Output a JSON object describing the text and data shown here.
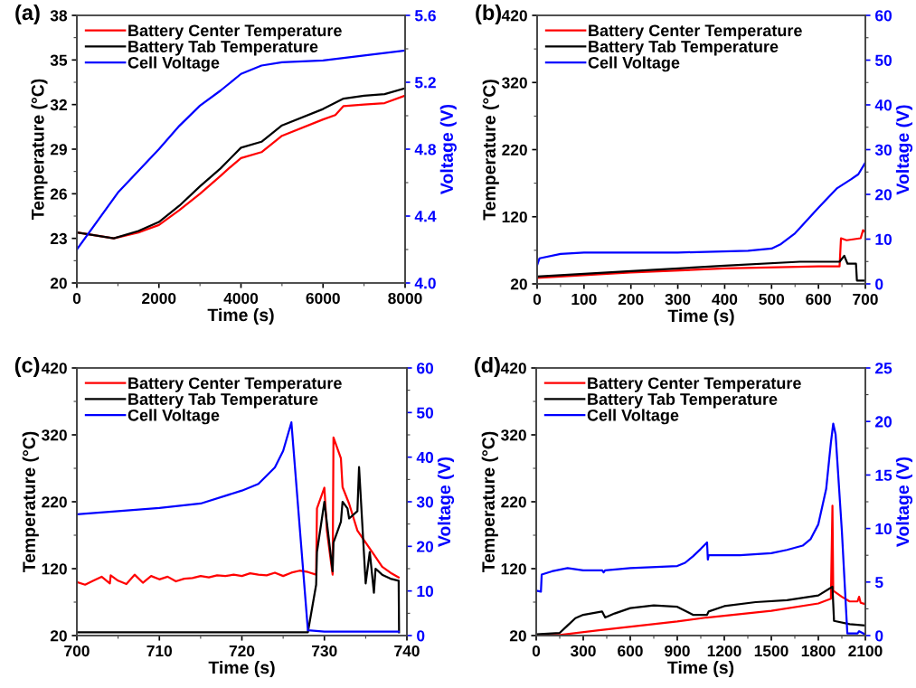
{
  "chart_data": [
    {
      "type": "line",
      "title": "(a)",
      "xlabel": "Time (s)",
      "ylabel": "Temperature (°C)",
      "y2label": "Voltage (V)",
      "xlim": [
        0,
        8000
      ],
      "xticks": [
        0,
        2000,
        4000,
        6000,
        8000
      ],
      "ylim": [
        20,
        38
      ],
      "yticks": [
        20,
        23,
        26,
        29,
        32,
        35,
        38
      ],
      "y2lim": [
        4.0,
        5.6
      ],
      "y2ticks": [
        {
          "value": 4,
          "label": "4.0"
        },
        4.4,
        4.8,
        5.2,
        5.6
      ],
      "legend": "top left",
      "line_style": "solid",
      "grid": false,
      "series": [
        {
          "name": "Battery Center Temperature",
          "color": "#ff0000",
          "x": [
            0,
            900,
            1500,
            2000,
            2500,
            3000,
            3500,
            3700,
            4000,
            4500,
            5000,
            6000,
            6300,
            6500,
            7000,
            7500,
            8000
          ],
          "values": [
            23.4,
            23.0,
            23.4,
            23.9,
            24.9,
            26.0,
            27.2,
            27.7,
            28.4,
            28.8,
            29.9,
            31.0,
            31.3,
            31.9,
            32.0,
            32.1,
            32.6
          ]
        },
        {
          "name": "Battery Tab Temperature",
          "color": "#000000",
          "x": [
            0,
            900,
            1500,
            2000,
            2500,
            3000,
            3500,
            4000,
            4500,
            5000,
            6000,
            6500,
            7000,
            7500,
            8000
          ],
          "values": [
            23.4,
            23.0,
            23.5,
            24.1,
            25.2,
            26.5,
            27.7,
            29.1,
            29.5,
            30.6,
            31.7,
            32.4,
            32.6,
            32.7,
            33.1
          ]
        },
        {
          "name": "Cell Voltage",
          "color": "#0000ff",
          "axis": "y2",
          "x": [
            0,
            1000,
            2000,
            2500,
            3000,
            3500,
            4000,
            4500,
            5000,
            6000,
            7000,
            8000
          ],
          "values": [
            4.2,
            4.54,
            4.8,
            4.94,
            5.06,
            5.15,
            5.25,
            5.3,
            5.32,
            5.33,
            5.36,
            5.39
          ]
        }
      ]
    },
    {
      "type": "line",
      "title": "(b)",
      "xlabel": "Time (s)",
      "ylabel": "Temperature (°C)",
      "y2label": "Voltage (V)",
      "xlim": [
        0,
        700
      ],
      "xticks": [
        0,
        100,
        200,
        300,
        400,
        500,
        600,
        700
      ],
      "ylim": [
        20,
        420
      ],
      "yticks": [
        20,
        120,
        220,
        320,
        420
      ],
      "y2lim": [
        0,
        60
      ],
      "y2ticks": [
        0,
        10,
        20,
        30,
        40,
        50,
        60
      ],
      "legend": "top left",
      "line_style": "solid",
      "grid": false,
      "series": [
        {
          "name": "Battery Center Temperature",
          "color": "#ff0000",
          "x": [
            0,
            200,
            400,
            600,
            645,
            648,
            660,
            690,
            695,
            700
          ],
          "values": [
            29,
            37,
            43,
            46,
            46,
            88,
            85,
            88,
            100,
            97
          ]
        },
        {
          "name": "Battery Tab Temperature",
          "color": "#000000",
          "x": [
            0,
            200,
            400,
            560,
            645,
            655,
            662,
            680,
            682,
            700
          ],
          "values": [
            31,
            39,
            47,
            53,
            53,
            62,
            50,
            50,
            25,
            25
          ]
        },
        {
          "name": "Cell Voltage",
          "color": "#0000ff",
          "axis": "y2",
          "x": [
            0,
            5,
            50,
            100,
            300,
            450,
            500,
            520,
            550,
            600,
            640,
            670,
            685,
            700
          ],
          "values": [
            4.2,
            5.7,
            6.7,
            7.0,
            7.0,
            7.4,
            7.9,
            8.9,
            11.3,
            17.0,
            21.4,
            23.4,
            24.5,
            27.1
          ]
        }
      ]
    },
    {
      "type": "line",
      "title": "(c)",
      "xlabel": "Time (s)",
      "ylabel": "Temperature (°C)",
      "y2label": "Voltage (V)",
      "xlim": [
        700,
        740
      ],
      "xticks": [
        700,
        710,
        720,
        730,
        740
      ],
      "ylim": [
        20,
        420
      ],
      "yticks": [
        20,
        120,
        220,
        320,
        420
      ],
      "y2lim": [
        0,
        60
      ],
      "y2ticks": [
        0,
        10,
        20,
        30,
        40,
        50,
        60
      ],
      "legend": "top left",
      "line_style": "solid",
      "grid": false,
      "series": [
        {
          "name": "Battery Center Temperature",
          "color": "#ff0000",
          "x": [
            700,
            701,
            702,
            703,
            704,
            704.1,
            705,
            706,
            707,
            708,
            709,
            710,
            711,
            712,
            713,
            714,
            715,
            716,
            717,
            718,
            719,
            720,
            721,
            722,
            723,
            724,
            725,
            726,
            727,
            728,
            729,
            729.1,
            730,
            730.3,
            731,
            731.1,
            732,
            732.2,
            733,
            734,
            735,
            736,
            737,
            738,
            739
          ],
          "values": [
            100,
            96,
            102,
            108,
            98,
            110,
            102,
            97,
            111,
            99,
            109,
            104,
            108,
            101,
            105,
            106,
            109,
            107,
            110,
            109,
            111,
            109,
            113,
            111,
            110,
            114,
            109,
            114,
            117,
            115,
            111,
            210,
            241,
            177,
            111,
            316,
            285,
            242,
            217,
            177,
            159,
            141,
            123,
            114,
            107
          ]
        },
        {
          "name": "Battery Tab Temperature",
          "color": "#000000",
          "x": [
            700,
            728,
            729,
            729.1,
            730,
            731,
            731.1,
            732,
            732.2,
            732.8,
            733,
            734,
            734.2,
            735,
            735.5,
            736,
            736.2,
            737,
            738,
            739,
            739.05
          ],
          "values": [
            25,
            25,
            96,
            145,
            220,
            116,
            159,
            190,
            220,
            210,
            195,
            206,
            272,
            98,
            145,
            84,
            120,
            111,
            105,
            102,
            25
          ]
        },
        {
          "name": "Cell Voltage",
          "color": "#0000ff",
          "axis": "y2",
          "x": [
            700,
            710,
            715,
            720,
            722,
            724,
            725,
            726,
            728,
            730,
            739
          ],
          "values": [
            27.2,
            28.6,
            29.6,
            32.5,
            34,
            37.7,
            41.4,
            47.8,
            1.2,
            0.9,
            0.9
          ]
        }
      ]
    },
    {
      "type": "line",
      "title": "(d)",
      "xlabel": "Time (s)",
      "ylabel": "Temperature (°C)",
      "y2label": "Voltage (V)",
      "xlim": [
        0,
        2100
      ],
      "xticks": [
        0,
        300,
        600,
        900,
        1200,
        1500,
        1800,
        2100
      ],
      "ylim": [
        20,
        420
      ],
      "yticks": [
        20,
        120,
        220,
        320,
        420
      ],
      "y2lim": [
        0,
        25
      ],
      "y2ticks": [
        0,
        5,
        10,
        15,
        20,
        25
      ],
      "legend": "top left",
      "line_style": "solid",
      "grid": false,
      "series": [
        {
          "name": "Battery Center Temperature",
          "color": "#ff0000",
          "x": [
            0,
            150,
            400,
            900,
            1090,
            1500,
            1800,
            1880,
            1890,
            1895,
            1950,
            2000,
            2050,
            2060,
            2070,
            2100
          ],
          "values": [
            21,
            21,
            28,
            41,
            47,
            57,
            68,
            75,
            214,
            87,
            78,
            71,
            71,
            78,
            69,
            67
          ]
        },
        {
          "name": "Battery Tab Temperature",
          "color": "#000000",
          "x": [
            0,
            150,
            200,
            250,
            300,
            420,
            440,
            500,
            600,
            750,
            900,
            1000,
            1090,
            1100,
            1200,
            1400,
            1600,
            1800,
            1890,
            1900,
            2000,
            2100
          ],
          "values": [
            22,
            24,
            35,
            46,
            51,
            56,
            47,
            53,
            61,
            65,
            63,
            51,
            51,
            56,
            64,
            70,
            73,
            80,
            93,
            42,
            37,
            35
          ]
        },
        {
          "name": "Cell Voltage",
          "color": "#0000ff",
          "axis": "y2",
          "x": [
            0,
            30,
            35,
            100,
            200,
            300,
            420,
            430,
            440,
            600,
            900,
            950,
            1000,
            1050,
            1090,
            1095,
            1100,
            1300,
            1500,
            1600,
            1700,
            1750,
            1800,
            1850,
            1880,
            1895,
            1910,
            1950,
            1985,
            2050,
            2060,
            2100
          ],
          "values": [
            4.2,
            4.1,
            5.7,
            6.0,
            6.3,
            6.1,
            6.1,
            5.9,
            6.1,
            6.3,
            6.5,
            6.8,
            7.4,
            8.1,
            8.7,
            7.1,
            7.5,
            7.5,
            7.7,
            8.0,
            8.4,
            9.0,
            10.4,
            13.7,
            18.0,
            19.8,
            18.8,
            9.8,
            0.2,
            0.2,
            0.4,
            0.1
          ]
        }
      ]
    }
  ]
}
